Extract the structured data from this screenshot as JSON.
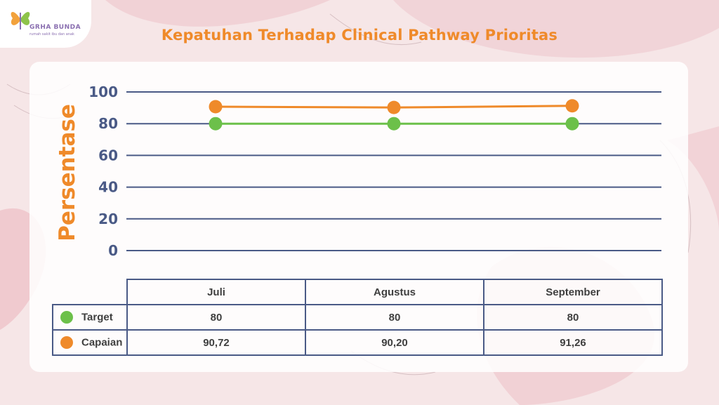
{
  "logo": {
    "name": "GRHA BUNDA",
    "tagline": "rumah sakit ibu dan anak"
  },
  "colors": {
    "title": "#ef8a2a",
    "grid": "#4a5a86",
    "target": "#6cc04a",
    "capaian": "#ef8a2a"
  },
  "chart_data": {
    "type": "line",
    "title": "Kepatuhan Terhadap Clinical Pathway Prioritas",
    "xlabel": "",
    "ylabel": "Persentase",
    "categories": [
      "Juli",
      "Agustus",
      "September"
    ],
    "ylim": [
      0,
      100
    ],
    "yticks": [
      0,
      20,
      40,
      60,
      80,
      100
    ],
    "grid": true,
    "legend": "data table below chart",
    "series": [
      {
        "name": "Target",
        "values": [
          80,
          80,
          80
        ],
        "labels": [
          "80",
          "80",
          "80"
        ],
        "color": "#6cc04a"
      },
      {
        "name": "Capaian",
        "values": [
          90.72,
          90.2,
          91.26
        ],
        "labels": [
          "90,72",
          "90,20",
          "91,26"
        ],
        "color": "#ef8a2a"
      }
    ]
  }
}
